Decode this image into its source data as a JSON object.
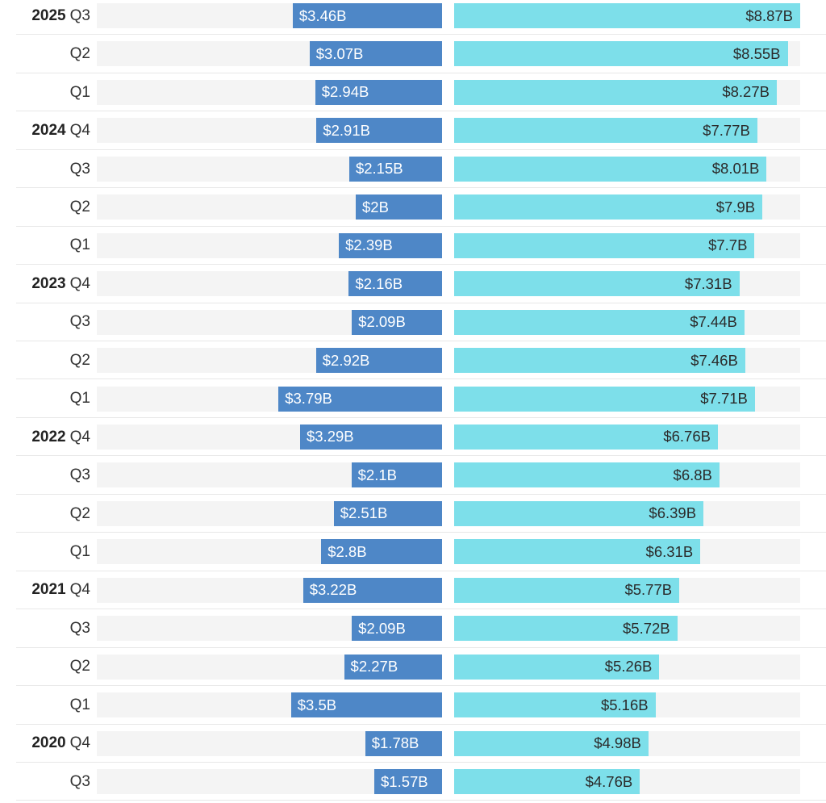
{
  "chart_data": {
    "type": "bar",
    "categories": [
      {
        "year": "2025",
        "quarter": "Q3"
      },
      {
        "year": "",
        "quarter": "Q2"
      },
      {
        "year": "",
        "quarter": "Q1"
      },
      {
        "year": "2024",
        "quarter": "Q4"
      },
      {
        "year": "",
        "quarter": "Q3"
      },
      {
        "year": "",
        "quarter": "Q2"
      },
      {
        "year": "",
        "quarter": "Q1"
      },
      {
        "year": "2023",
        "quarter": "Q4"
      },
      {
        "year": "",
        "quarter": "Q3"
      },
      {
        "year": "",
        "quarter": "Q2"
      },
      {
        "year": "",
        "quarter": "Q1"
      },
      {
        "year": "2022",
        "quarter": "Q4"
      },
      {
        "year": "",
        "quarter": "Q3"
      },
      {
        "year": "",
        "quarter": "Q2"
      },
      {
        "year": "",
        "quarter": "Q1"
      },
      {
        "year": "2021",
        "quarter": "Q4"
      },
      {
        "year": "",
        "quarter": "Q3"
      },
      {
        "year": "",
        "quarter": "Q2"
      },
      {
        "year": "",
        "quarter": "Q1"
      },
      {
        "year": "2020",
        "quarter": "Q4"
      },
      {
        "year": "",
        "quarter": "Q3"
      }
    ],
    "series": [
      {
        "color": "#4e87c7",
        "direction": "left",
        "values": [
          3.46,
          3.07,
          2.94,
          2.91,
          2.15,
          2.0,
          2.39,
          2.16,
          2.09,
          2.92,
          3.79,
          3.29,
          2.1,
          2.51,
          2.8,
          3.22,
          2.09,
          2.27,
          3.5,
          1.78,
          1.57
        ],
        "labels": [
          "$3.46B",
          "$3.07B",
          "$2.94B",
          "$2.91B",
          "$2.15B",
          "$2B",
          "$2.39B",
          "$2.16B",
          "$2.09B",
          "$2.92B",
          "$3.79B",
          "$3.29B",
          "$2.1B",
          "$2.51B",
          "$2.8B",
          "$3.22B",
          "$2.09B",
          "$2.27B",
          "$3.5B",
          "$1.78B",
          "$1.57B"
        ],
        "max": 8.0
      },
      {
        "color": "#7ddfea",
        "direction": "right",
        "values": [
          8.87,
          8.55,
          8.27,
          7.77,
          8.01,
          7.9,
          7.7,
          7.31,
          7.44,
          7.46,
          7.71,
          6.76,
          6.8,
          6.39,
          6.31,
          5.77,
          5.72,
          5.26,
          5.16,
          4.98,
          4.76
        ],
        "labels": [
          "$8.87B",
          "$8.55B",
          "$8.27B",
          "$7.77B",
          "$8.01B",
          "$7.9B",
          "$7.7B",
          "$7.31B",
          "$7.44B",
          "$7.46B",
          "$7.71B",
          "$6.76B",
          "$6.8B",
          "$6.39B",
          "$6.31B",
          "$5.77B",
          "$5.72B",
          "$5.26B",
          "$5.16B",
          "$4.98B",
          "$4.76B"
        ],
        "max": 8.87
      }
    ],
    "grid": false,
    "legend": "none"
  }
}
